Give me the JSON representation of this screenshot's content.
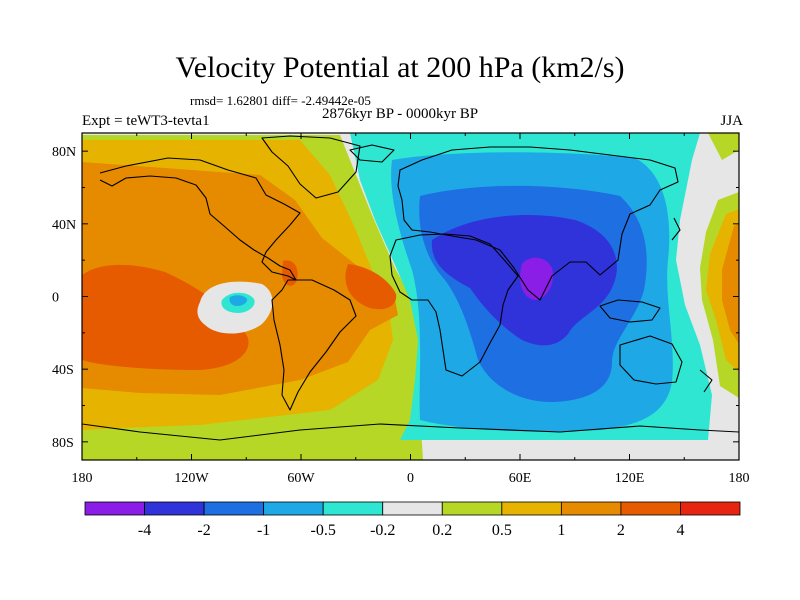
{
  "title": "Velocity Potential at 200 hPa (km2/s)",
  "stats": "rmsd= 1.62801 diff= -2.49442e-05",
  "period": "2876kyr BP - 0000kyr BP",
  "experiment": "Expt = teWT3-tevta1",
  "season": "JJA",
  "map": {
    "lon_range": [
      -180,
      180
    ],
    "lat_range": [
      -90,
      90
    ],
    "lon_ticks": [
      {
        "lon": -180,
        "label": "180"
      },
      {
        "lon": -120,
        "label": "120W"
      },
      {
        "lon": -60,
        "label": "60W"
      },
      {
        "lon": 0,
        "label": "0"
      },
      {
        "lon": 60,
        "label": "60E"
      },
      {
        "lon": 120,
        "label": "120E"
      },
      {
        "lon": 180,
        "label": "180"
      }
    ],
    "lat_ticks": [
      {
        "lat": 80,
        "label": "80N"
      },
      {
        "lat": 40,
        "label": "40N"
      },
      {
        "lat": 0,
        "label": "0"
      },
      {
        "lat": -40,
        "label": "40S"
      },
      {
        "lat": -80,
        "label": "80S"
      }
    ]
  },
  "colorbar": {
    "colors": [
      "#8a1ee6",
      "#2f33d9",
      "#1e6fe1",
      "#1ea9e6",
      "#2ee6d2",
      "#e6e6e6",
      "#b6d726",
      "#e6b400",
      "#e68a00",
      "#e65a00",
      "#e6240f"
    ],
    "labels": [
      "-4",
      "-2",
      "-1",
      "-0.5",
      "-0.2",
      "0.2",
      "0.5",
      "1",
      "2",
      "4"
    ]
  }
}
